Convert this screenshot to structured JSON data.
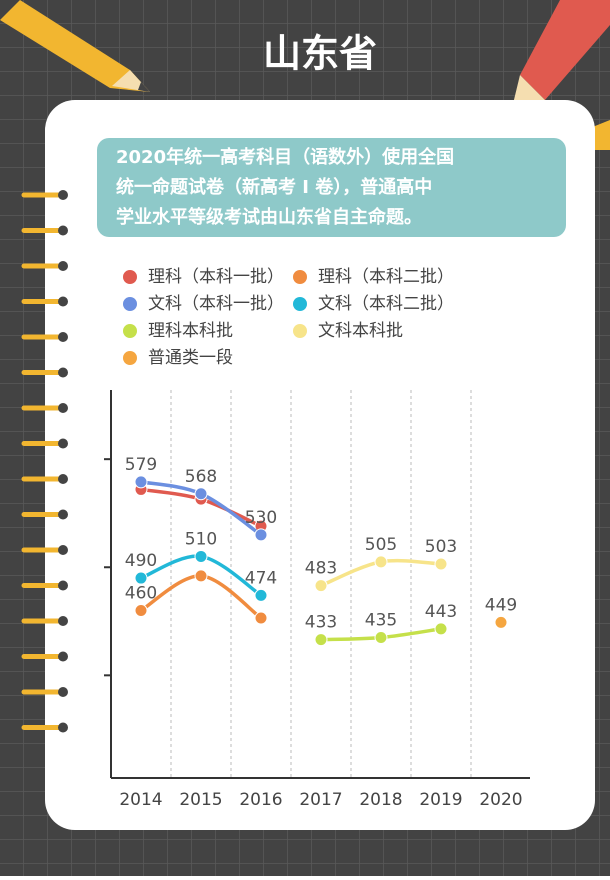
{
  "title": "山东省",
  "note": [
    "2020年统一高考科目（语数外）使用全国",
    "统一命题试卷（新高考 I 卷），普通高中",
    "学业水平等级考试由山东省自主命题。"
  ],
  "chart_data": {
    "type": "line",
    "categories": [
      "2014",
      "2015",
      "2016",
      "2017",
      "2018",
      "2019",
      "2020"
    ],
    "series": [
      {
        "name": "理科（本科一批）",
        "color": "#e05a4f",
        "values": [
          572,
          563,
          538,
          null,
          null,
          null,
          null
        ],
        "show_value": [
          false,
          false,
          false,
          false,
          false,
          false,
          false
        ]
      },
      {
        "name": "理科（本科二批）",
        "color": "#f08c3f",
        "values": [
          460,
          492,
          453,
          null,
          null,
          null,
          null
        ],
        "show_value": [
          true,
          false,
          false,
          false,
          false,
          false,
          false
        ]
      },
      {
        "name": "文科（本科一批）",
        "color": "#6b8fe0",
        "values": [
          579,
          568,
          530,
          null,
          null,
          null,
          null
        ],
        "show_value": [
          true,
          true,
          true,
          false,
          false,
          false,
          false
        ]
      },
      {
        "name": "文科（本科二批）",
        "color": "#22b8d8",
        "values": [
          490,
          510,
          474,
          null,
          null,
          null,
          null
        ],
        "show_value": [
          true,
          true,
          true,
          false,
          false,
          false,
          false
        ]
      },
      {
        "name": "理科本科批",
        "color": "#c5e04a",
        "values": [
          null,
          null,
          null,
          433,
          435,
          443,
          null
        ],
        "show_value": [
          false,
          false,
          false,
          true,
          true,
          true,
          false
        ]
      },
      {
        "name": "文科本科批",
        "color": "#f7e48a",
        "values": [
          null,
          null,
          null,
          483,
          505,
          503,
          null
        ],
        "show_value": [
          false,
          false,
          false,
          true,
          true,
          true,
          false
        ]
      },
      {
        "name": "普通类一段",
        "color": "#f5a640",
        "values": [
          null,
          null,
          null,
          null,
          null,
          null,
          449
        ],
        "show_value": [
          false,
          false,
          false,
          false,
          false,
          false,
          true
        ]
      }
    ],
    "ylim": [
      305,
      664
    ],
    "yticks": [
      400,
      500,
      600
    ]
  }
}
